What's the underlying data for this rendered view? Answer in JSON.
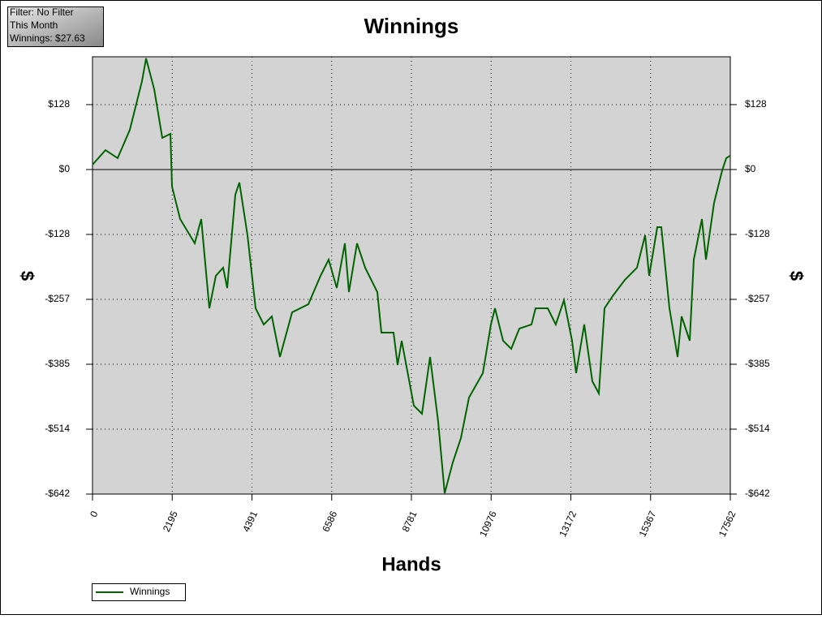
{
  "info_box": {
    "lines": [
      "Filter: No Filter",
      "This Month",
      "Winnings: $27.63"
    ]
  },
  "chart_data": {
    "type": "line",
    "title": "Winnings",
    "x_label": "Hands",
    "y_label": "$",
    "xlim": [
      0,
      17562
    ],
    "ylim": [
      -642,
      223
    ],
    "xticks": [
      0,
      2195,
      4391,
      6586,
      8781,
      10976,
      13172,
      15367,
      17562
    ],
    "yticks": [
      {
        "value": 128.4,
        "label": "$128"
      },
      {
        "value": 0,
        "label": "$0"
      },
      {
        "value": -128.4,
        "label": "-$128"
      },
      {
        "value": -256.8,
        "label": "-$257"
      },
      {
        "value": -385.2,
        "label": "-$385"
      },
      {
        "value": -513.6,
        "label": "-$514"
      },
      {
        "value": -642,
        "label": "-$642"
      }
    ],
    "grid": true,
    "legend": "bottom-left",
    "x": [
      0,
      357,
      693,
      1028,
      1363,
      1475,
      1698,
      1922,
      2145,
      2190,
      2413,
      2815,
      2994,
      3217,
      3396,
      3597,
      3709,
      3932,
      4044,
      4268,
      4491,
      4714,
      4938,
      5161,
      5496,
      5943,
      6278,
      6502,
      6725,
      6949,
      7060,
      7284,
      7507,
      7842,
      7954,
      8289,
      8401,
      8513,
      8848,
      9071,
      9295,
      9518,
      9697,
      9920,
      10144,
      10367,
      10747,
      10970,
      11082,
      11306,
      11529,
      11752,
      12087,
      12199,
      12534,
      12757,
      12981,
      13204,
      13316,
      13540,
      13763,
      13942,
      14098,
      14322,
      14657,
      14992,
      15216,
      15328,
      15551,
      15662,
      15886,
      16109,
      16221,
      16444,
      16556,
      16779,
      16891,
      17115,
      17338,
      17450,
      17562
    ],
    "series": [
      {
        "name": "Winnings",
        "color": "#006400",
        "values": [
          9.6,
          38.5,
          22.5,
          78.6,
          174.9,
          219.9,
          158.9,
          62.6,
          70.6,
          -33.7,
          -97.9,
          -146.0,
          -97.9,
          -274.5,
          -210.3,
          -194.2,
          -234.3,
          -49.8,
          -25.7,
          -130.0,
          -274.5,
          -306.6,
          -290.5,
          -370.8,
          -282.5,
          -266.4,
          -210.3,
          -178.2,
          -234.3,
          -146.0,
          -242.4,
          -146.0,
          -194.2,
          -242.4,
          -322.6,
          -322.6,
          -386.8,
          -338.7,
          -467.1,
          -483.1,
          -370.8,
          -499.2,
          -640.4,
          -579.4,
          -531.3,
          -451.0,
          -402.9,
          -306.6,
          -274.5,
          -338.7,
          -354.7,
          -314.6,
          -306.6,
          -274.5,
          -274.5,
          -306.6,
          -258.4,
          -338.7,
          -402.9,
          -306.6,
          -418.9,
          -443.0,
          -274.5,
          -250.4,
          -218.3,
          -194.2,
          -130.0,
          -210.3,
          -114.0,
          -114.0,
          -274.5,
          -370.8,
          -290.5,
          -338.7,
          -178.2,
          -97.9,
          -178.2,
          -65.8,
          -1.6,
          22.5,
          27.6
        ]
      }
    ]
  }
}
